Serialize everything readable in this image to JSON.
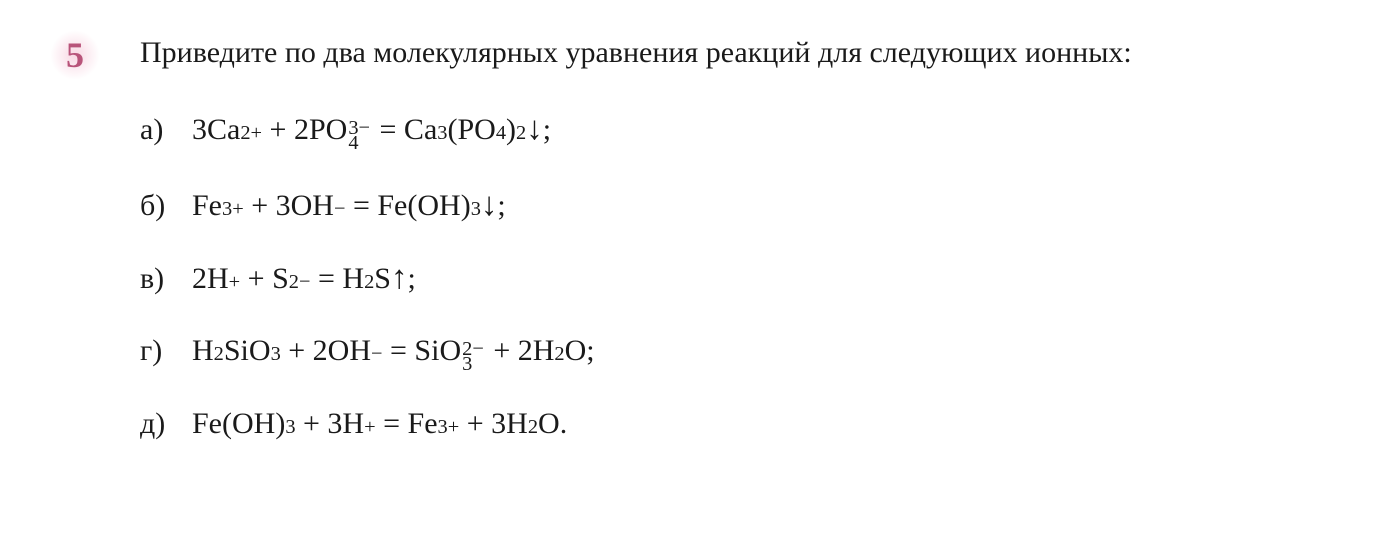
{
  "exercise": {
    "number": "5",
    "number_color": "#b8547a",
    "number_bg_color": "#f8d7e3",
    "prompt": "Приведите по два молекулярных уравнения реакций для следующих ионных:",
    "text_color": "#1a1a1a",
    "font_family": "Georgia, 'Times New Roman', serif",
    "prompt_fontsize": 30,
    "equation_fontsize": 30,
    "line_gap": 24,
    "equations": [
      {
        "label": "а)",
        "parts": [
          {
            "t": "3Ca"
          },
          {
            "sup": "2+"
          },
          {
            "t": " + 2PO"
          },
          {
            "stack": {
              "sup": "3−",
              "sub": "4"
            }
          },
          {
            "t": " = Ca"
          },
          {
            "sub": "3"
          },
          {
            "t": "(PO"
          },
          {
            "sub": "4"
          },
          {
            "t": ")"
          },
          {
            "sub": "2"
          },
          {
            "arrow": "↓"
          },
          {
            "t": ";"
          }
        ]
      },
      {
        "label": "б)",
        "parts": [
          {
            "t": "Fe"
          },
          {
            "sup": "3+"
          },
          {
            "t": " + 3OH"
          },
          {
            "sup": "−"
          },
          {
            "t": " = Fe(OH)"
          },
          {
            "sub": "3"
          },
          {
            "arrow": "↓"
          },
          {
            "t": ";"
          }
        ]
      },
      {
        "label": "в)",
        "parts": [
          {
            "t": "2H"
          },
          {
            "sup": "+"
          },
          {
            "t": " + S"
          },
          {
            "sup": "2−"
          },
          {
            "t": " = H"
          },
          {
            "sub": "2"
          },
          {
            "t": "S"
          },
          {
            "arrow": "↑"
          },
          {
            "t": ";"
          }
        ]
      },
      {
        "label": "г)",
        "parts": [
          {
            "t": "H"
          },
          {
            "sub": "2"
          },
          {
            "t": "SiO"
          },
          {
            "sub": "3"
          },
          {
            "t": " + 2OH"
          },
          {
            "sup": "−"
          },
          {
            "t": " = SiO"
          },
          {
            "stack": {
              "sup": "2−",
              "sub": "3"
            }
          },
          {
            "t": " + 2H"
          },
          {
            "sub": "2"
          },
          {
            "t": "O;"
          }
        ]
      },
      {
        "label": "д)",
        "parts": [
          {
            "t": "Fe(OH)"
          },
          {
            "sub": "3"
          },
          {
            "t": " + 3H"
          },
          {
            "sup": "+"
          },
          {
            "t": " = Fe"
          },
          {
            "sup": "3+"
          },
          {
            "t": " + 3H"
          },
          {
            "sub": "2"
          },
          {
            "t": "O."
          }
        ]
      }
    ]
  }
}
